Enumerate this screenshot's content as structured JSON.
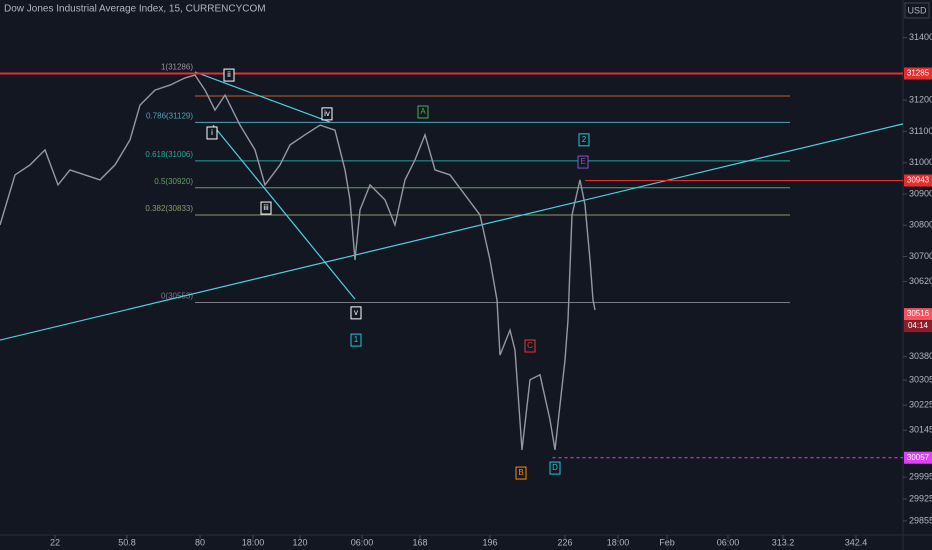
{
  "chart_data": {
    "type": "line",
    "title": "Dow Jones Industrial Average Index, 15, CURRENCYCOM",
    "currency": "USD",
    "color": "#9598a1",
    "x": [
      0,
      6,
      12,
      18,
      23.2,
      28,
      34,
      40,
      46,
      52,
      56,
      62,
      68,
      74,
      78,
      82,
      86,
      90,
      96,
      102,
      106,
      112,
      116,
      122,
      128,
      134,
      138,
      140,
      142,
      144,
      148,
      154,
      158,
      162,
      166,
      170,
      174,
      180,
      186,
      192,
      196,
      198.8,
      200,
      204,
      206,
      208.8,
      212,
      216,
      220,
      222,
      226,
      227.2,
      228.8,
      232,
      234,
      236,
      237.2,
      238
    ],
    "values": [
      30801,
      30961,
      30993,
      31041,
      30929,
      30977,
      30961,
      30945,
      30993,
      31073,
      31184,
      31232,
      31248,
      31271,
      31280,
      31232,
      31168,
      31216,
      31120,
      31041,
      30929,
      30993,
      31057,
      31089,
      31120,
      31104,
      30977,
      30881,
      30689,
      30849,
      30929,
      30881,
      30801,
      30945,
      31009,
      31089,
      30977,
      30961,
      30897,
      30833,
      30689,
      30561,
      30385,
      30465,
      30401,
      30082,
      30306,
      30322,
      30178,
      30082,
      30369,
      30497,
      30833,
      30945,
      30865,
      30689,
      30561,
      30529
    ],
    "xlim": [
      0,
      361.2
    ],
    "ylim": [
      29810,
      31520
    ],
    "xticks": [
      22,
      50.8,
      80,
      {
        "value": 101.2,
        "label": "18:00"
      },
      120,
      {
        "value": 144.8,
        "label": "06:00"
      },
      168,
      196,
      226,
      {
        "value": 247.2,
        "label": "18:00"
      },
      {
        "value": 266.8,
        "label": "Feb"
      },
      {
        "value": 291.2,
        "label": "06:00"
      },
      313.2,
      342.4
    ],
    "xtick_labels_shown": true,
    "yticks": [
      31400,
      31200,
      31100,
      31000,
      30900,
      30800,
      30700,
      30620,
      30380,
      30305,
      30225,
      30145,
      29995,
      29925,
      29855
    ],
    "levels": [
      {
        "label": "1(31286)",
        "value": 31286,
        "color": "#9598a1"
      },
      {
        "value": 31213,
        "color": "#c0602a"
      },
      {
        "label": "0.786(31129)",
        "value": 31129,
        "color": "#4fa3b8"
      },
      {
        "label": "0.618(31006)",
        "value": 31006,
        "color": "#26a69a"
      },
      {
        "label": "0.5(30920)",
        "value": 30920,
        "color": "#6a9a6a"
      },
      {
        "label": "0.382(30833)",
        "value": 30833,
        "color": "#8a9a6a"
      },
      {
        "label": "0(30553)",
        "value": 30553,
        "color": "#787b86"
      }
    ],
    "levels_from": 78,
    "levels_to": 316,
    "badges": [
      {
        "value": 31285,
        "label": "31285",
        "color": "#e52e2e",
        "line_from": 0
      },
      {
        "value": 30943,
        "label": "30943",
        "color": "#e52e2e",
        "line_from": 234
      },
      {
        "value": 30516,
        "label": "30516",
        "color": "#f7525f"
      },
      {
        "value": 30057,
        "label": "30057",
        "color": "#e040fb",
        "line_from": 221,
        "dashed": true
      }
    ],
    "countdown": "04:14",
    "trendlines": [
      {
        "points": [
          [
            0,
            30433
          ],
          [
            361.2,
            31124
          ]
        ],
        "color": "#4dd0e1"
      },
      {
        "points": [
          [
            78,
            31290
          ],
          [
            132,
            31130
          ]
        ],
        "color": "#4dd0e1"
      },
      {
        "points": [
          [
            85.2,
            31120
          ],
          [
            142,
            30564
          ]
        ],
        "color": "#4dd0e1"
      }
    ],
    "wave_labels": [
      {
        "label": "i",
        "x": 84.8,
        "value": 31095,
        "color": "#ffffff"
      },
      {
        "label": "ii",
        "x": 91.6,
        "value": 31280,
        "color": "#ffffff"
      },
      {
        "label": "iii",
        "x": 106.4,
        "value": 30855,
        "color": "#ffffff"
      },
      {
        "label": "iv",
        "x": 130.8,
        "value": 31156,
        "color": "#ffffff"
      },
      {
        "label": "v",
        "x": 142.4,
        "value": 30520,
        "color": "#ffffff"
      },
      {
        "label": "1",
        "x": 142.4,
        "value": 30433,
        "color": "#26c6da"
      },
      {
        "label": "A",
        "x": 169.2,
        "value": 31162,
        "color": "#4caf50"
      },
      {
        "label": "2",
        "x": 233.6,
        "value": 31073,
        "color": "#26c6da"
      },
      {
        "label": "E",
        "x": 233.2,
        "value": 31002,
        "color": "#7e57c2"
      },
      {
        "label": "C",
        "x": 212,
        "value": 30414,
        "color": "#e53935"
      },
      {
        "label": "B",
        "x": 208.4,
        "value": 30008,
        "color": "#fb8c00"
      },
      {
        "label": "D",
        "x": 222,
        "value": 30024,
        "color": "#26c6da"
      }
    ]
  }
}
